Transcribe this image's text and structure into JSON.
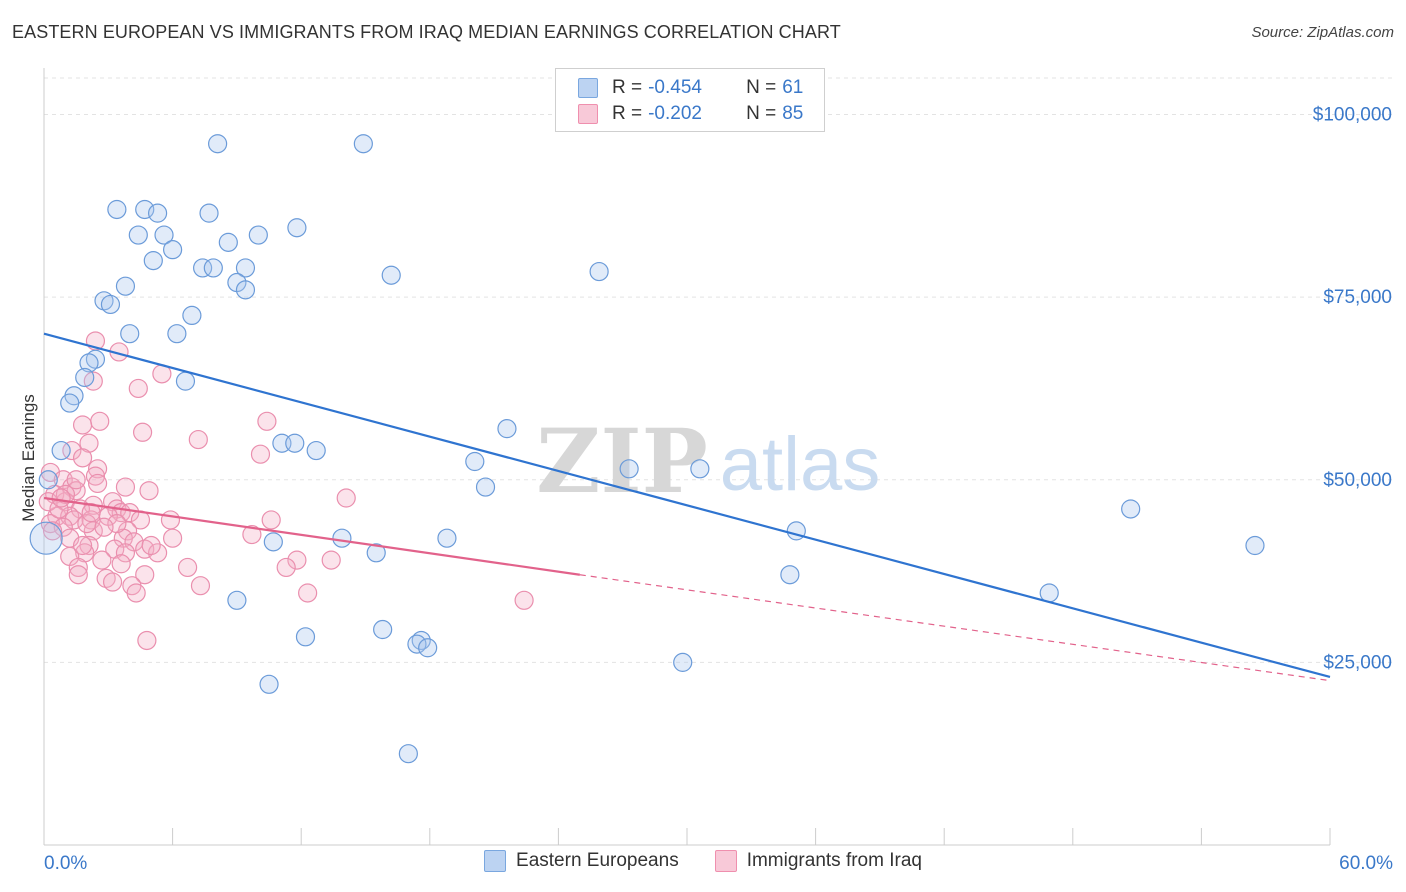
{
  "title": "EASTERN EUROPEAN VS IMMIGRANTS FROM IRAQ MEDIAN EARNINGS CORRELATION CHART",
  "source": "Source: ZipAtlas.com",
  "watermark": {
    "zip": "ZIP",
    "atlas": "atlas"
  },
  "legend_top": {
    "series1": {
      "r_label": "R =",
      "r_value": "-0.454",
      "n_label": "N =",
      "n_value": "61"
    },
    "series2": {
      "r_label": "R =",
      "r_value": "-0.202",
      "n_label": "N =",
      "n_value": "85"
    }
  },
  "legend_bottom": {
    "series1": "Eastern Europeans",
    "series2": "Immigrants from Iraq"
  },
  "chart_data": {
    "type": "scatter",
    "title": "EASTERN EUROPEAN VS IMMIGRANTS FROM IRAQ MEDIAN EARNINGS CORRELATION CHART",
    "xlabel": "",
    "ylabel": "Median Earnings",
    "xlim": [
      0,
      60
    ],
    "ylim": [
      0,
      105000
    ],
    "x_tick_labels": [
      "0.0%",
      "60.0%"
    ],
    "y_ticks": [
      25000,
      50000,
      75000,
      100000
    ],
    "y_tick_labels": [
      "$25,000",
      "$50,000",
      "$75,000",
      "$100,000"
    ],
    "grid": true,
    "legend_position": "top-center",
    "colors": {
      "series1": "#7aa7df",
      "series2": "#ef8fae",
      "line1": "#2f74d0",
      "line2": "#e2628b",
      "axis_labels": "#3a78c9"
    },
    "series": [
      {
        "name": "Eastern Europeans",
        "r": -0.454,
        "n": 61,
        "trend": {
          "x": [
            0,
            60
          ],
          "y": [
            70000,
            23000
          ]
        },
        "points": [
          [
            8.1,
            96000
          ],
          [
            14.9,
            96000
          ],
          [
            3.4,
            87000
          ],
          [
            4.7,
            87000
          ],
          [
            5.3,
            86500
          ],
          [
            7.7,
            86500
          ],
          [
            11.8,
            84500
          ],
          [
            4.4,
            83500
          ],
          [
            5.6,
            83500
          ],
          [
            10.0,
            83500
          ],
          [
            8.6,
            82500
          ],
          [
            6.0,
            81500
          ],
          [
            5.1,
            80000
          ],
          [
            7.4,
            79000
          ],
          [
            9.4,
            79000
          ],
          [
            7.9,
            79000
          ],
          [
            16.2,
            78000
          ],
          [
            25.9,
            78500
          ],
          [
            9.0,
            77000
          ],
          [
            9.4,
            76000
          ],
          [
            3.8,
            76500
          ],
          [
            2.8,
            74500
          ],
          [
            3.1,
            74000
          ],
          [
            6.9,
            72500
          ],
          [
            6.2,
            70000
          ],
          [
            4.0,
            70000
          ],
          [
            2.4,
            66500
          ],
          [
            2.1,
            66000
          ],
          [
            1.9,
            64000
          ],
          [
            6.6,
            63500
          ],
          [
            1.4,
            61500
          ],
          [
            1.2,
            60500
          ],
          [
            21.6,
            57000
          ],
          [
            11.1,
            55000
          ],
          [
            11.7,
            55000
          ],
          [
            12.7,
            54000
          ],
          [
            0.8,
            54000
          ],
          [
            20.1,
            52500
          ],
          [
            27.3,
            51500
          ],
          [
            30.6,
            51500
          ],
          [
            20.6,
            49000
          ],
          [
            0.2,
            50000
          ],
          [
            50.7,
            46000
          ],
          [
            56.5,
            41000
          ],
          [
            35.1,
            43000
          ],
          [
            13.9,
            42000
          ],
          [
            18.8,
            42000
          ],
          [
            10.7,
            41500
          ],
          [
            15.5,
            40000
          ],
          [
            34.8,
            37000
          ],
          [
            46.9,
            34500
          ],
          [
            9.0,
            33500
          ],
          [
            15.8,
            29500
          ],
          [
            17.6,
            28000
          ],
          [
            17.4,
            27500
          ],
          [
            17.9,
            27000
          ],
          [
            12.2,
            28500
          ],
          [
            29.8,
            25000
          ],
          [
            10.5,
            22000
          ],
          [
            17.0,
            12500
          ],
          [
            0.1,
            42000
          ]
        ]
      },
      {
        "name": "Immigrants from Iraq",
        "r": -0.202,
        "n": 85,
        "trend": {
          "x": [
            0,
            25
          ],
          "y": [
            47500,
            37000
          ]
        },
        "trend_dashed": {
          "x": [
            25,
            60
          ],
          "y": [
            37000,
            22500
          ]
        },
        "points": [
          [
            2.4,
            69000
          ],
          [
            3.5,
            67500
          ],
          [
            5.5,
            64500
          ],
          [
            2.3,
            63500
          ],
          [
            4.4,
            62500
          ],
          [
            2.6,
            58000
          ],
          [
            10.4,
            58000
          ],
          [
            1.8,
            57500
          ],
          [
            4.6,
            56500
          ],
          [
            7.2,
            55500
          ],
          [
            2.1,
            55000
          ],
          [
            1.3,
            54000
          ],
          [
            10.1,
            53500
          ],
          [
            1.8,
            53000
          ],
          [
            2.5,
            51500
          ],
          [
            0.3,
            51000
          ],
          [
            2.4,
            50500
          ],
          [
            0.9,
            50000
          ],
          [
            2.5,
            49500
          ],
          [
            1.3,
            49000
          ],
          [
            1.5,
            48500
          ],
          [
            3.8,
            49000
          ],
          [
            4.9,
            48500
          ],
          [
            14.1,
            47500
          ],
          [
            0.5,
            48000
          ],
          [
            1.0,
            47000
          ],
          [
            3.2,
            47000
          ],
          [
            2.3,
            46500
          ],
          [
            1.7,
            46000
          ],
          [
            3.4,
            46000
          ],
          [
            3.6,
            45500
          ],
          [
            4.0,
            45500
          ],
          [
            0.6,
            45000
          ],
          [
            1.2,
            45000
          ],
          [
            1.4,
            44500
          ],
          [
            2.2,
            44500
          ],
          [
            4.5,
            44500
          ],
          [
            5.9,
            44500
          ],
          [
            10.6,
            44500
          ],
          [
            0.3,
            44000
          ],
          [
            0.9,
            43500
          ],
          [
            2.3,
            43000
          ],
          [
            3.9,
            43000
          ],
          [
            9.7,
            42500
          ],
          [
            1.2,
            42000
          ],
          [
            3.7,
            42000
          ],
          [
            4.2,
            41500
          ],
          [
            2.1,
            41000
          ],
          [
            3.3,
            40500
          ],
          [
            1.9,
            40000
          ],
          [
            4.7,
            40500
          ],
          [
            3.8,
            40000
          ],
          [
            5.3,
            40000
          ],
          [
            1.2,
            39500
          ],
          [
            2.7,
            39000
          ],
          [
            11.8,
            39000
          ],
          [
            13.4,
            39000
          ],
          [
            1.6,
            38000
          ],
          [
            11.3,
            38000
          ],
          [
            6.7,
            38000
          ],
          [
            1.6,
            37000
          ],
          [
            4.7,
            37000
          ],
          [
            2.9,
            36500
          ],
          [
            3.2,
            36000
          ],
          [
            4.1,
            35500
          ],
          [
            7.3,
            35500
          ],
          [
            4.3,
            34500
          ],
          [
            12.3,
            34500
          ],
          [
            22.4,
            33500
          ],
          [
            4.8,
            28000
          ],
          [
            0.2,
            47000
          ],
          [
            0.7,
            46000
          ],
          [
            1.0,
            48000
          ],
          [
            2.0,
            44000
          ],
          [
            3.0,
            45000
          ],
          [
            0.4,
            43000
          ],
          [
            1.8,
            41000
          ],
          [
            3.6,
            38500
          ],
          [
            5.0,
            41000
          ],
          [
            0.8,
            47500
          ],
          [
            2.2,
            45500
          ],
          [
            6.0,
            42000
          ],
          [
            1.5,
            50000
          ],
          [
            3.4,
            44000
          ],
          [
            2.8,
            43500
          ]
        ]
      }
    ]
  }
}
